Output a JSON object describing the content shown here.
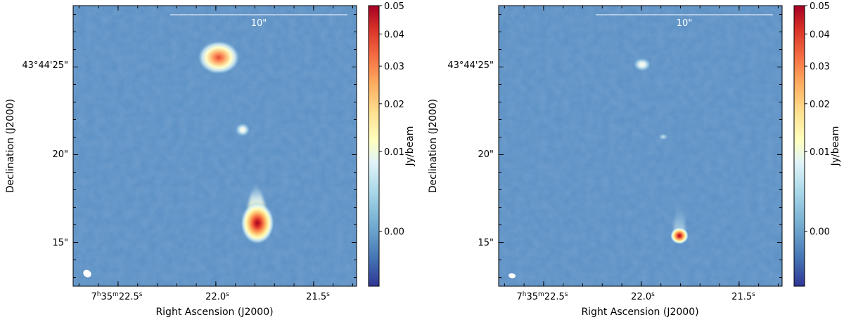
{
  "chart_data": [
    {
      "type": "heatmap",
      "title": "",
      "xlabel": "Right Ascension (J2000)",
      "ylabel": "Declination (J2000)",
      "x_ticks": [
        {
          "label_main": "7",
          "label_sup1": "h",
          "label_mid": "35",
          "label_sup2": "m",
          "label_tail": "22.5",
          "label_sup3": "s",
          "value_s": 22.5
        },
        {
          "label_main": "22.0",
          "label_sup1": "s",
          "value_s": 22.0
        },
        {
          "label_main": "21.5",
          "label_sup1": "s",
          "value_s": 21.5
        }
      ],
      "y_ticks": [
        {
          "label": "43°44'25\"",
          "value_arcsec": 25
        },
        {
          "label": "20\"",
          "value_arcsec": 20
        },
        {
          "label": "15\"",
          "value_arcsec": 15
        }
      ],
      "xlim_s": [
        22.73,
        21.28
      ],
      "ylim_arcsec": [
        12.5,
        28.5
      ],
      "scalebar": {
        "label": "10\"",
        "length_arcsec": 10
      },
      "colorbar": {
        "label": "Jy/beam",
        "tick_labels": [
          "0.05",
          "0.04",
          "0.03",
          "0.02",
          "0.01",
          "0.00"
        ],
        "tick_values": [
          0.05,
          0.04,
          0.03,
          0.02,
          0.01,
          0.0
        ],
        "range": [
          -0.002,
          0.05
        ],
        "scale": "power-stretch",
        "colormap": "RdYlBu_r"
      },
      "background_color": "#5b8fc4",
      "sources": [
        {
          "name": "north",
          "ra_s": 21.99,
          "dec_arcsec": 25.3,
          "peak_jy": 0.028
        },
        {
          "name": "middle",
          "ra_s": 21.87,
          "dec_arcsec": 21.3,
          "peak_jy": 0.004
        },
        {
          "name": "south",
          "ra_s": 21.79,
          "dec_arcsec": 15.8,
          "peak_jy": 0.05
        }
      ],
      "beam": {
        "ra_s": 22.67,
        "dec_arcsec": 13.1
      }
    },
    {
      "type": "heatmap",
      "title": "",
      "xlabel": "Right Ascension (J2000)",
      "ylabel": "Declination (J2000)",
      "x_ticks": [
        {
          "label_main": "7",
          "label_sup1": "h",
          "label_mid": "35",
          "label_sup2": "m",
          "label_tail": "22.5",
          "label_sup3": "s",
          "value_s": 22.5
        },
        {
          "label_main": "22.0",
          "label_sup1": "s",
          "value_s": 22.0
        },
        {
          "label_main": "21.5",
          "label_sup1": "s",
          "value_s": 21.5
        }
      ],
      "y_ticks": [
        {
          "label": "43°44'25\"",
          "value_arcsec": 25
        },
        {
          "label": "20\"",
          "value_arcsec": 20
        },
        {
          "label": "15\"",
          "value_arcsec": 15
        }
      ],
      "xlim_s": [
        22.73,
        21.28
      ],
      "ylim_arcsec": [
        12.5,
        28.5
      ],
      "scalebar": {
        "label": "10\"",
        "length_arcsec": 10
      },
      "colorbar": {
        "label": "Jy/beam",
        "tick_labels": [
          "0.05",
          "0.04",
          "0.03",
          "0.02",
          "0.01",
          "0.00"
        ],
        "tick_values": [
          0.05,
          0.04,
          0.03,
          0.02,
          0.01,
          0.0
        ],
        "range": [
          -0.002,
          0.05
        ],
        "scale": "power-stretch",
        "colormap": "RdYlBu_r"
      },
      "background_color": "#5b8fc4",
      "sources": [
        {
          "name": "north",
          "ra_s": 21.99,
          "dec_arcsec": 24.9,
          "peak_jy": 0.008
        },
        {
          "name": "middle",
          "ra_s": 21.88,
          "dec_arcsec": 20.8,
          "peak_jy": 0.002
        },
        {
          "name": "south",
          "ra_s": 21.79,
          "dec_arcsec": 15.3,
          "peak_jy": 0.03
        }
      ],
      "beam": {
        "ra_s": 22.67,
        "dec_arcsec": 13.1
      }
    }
  ]
}
